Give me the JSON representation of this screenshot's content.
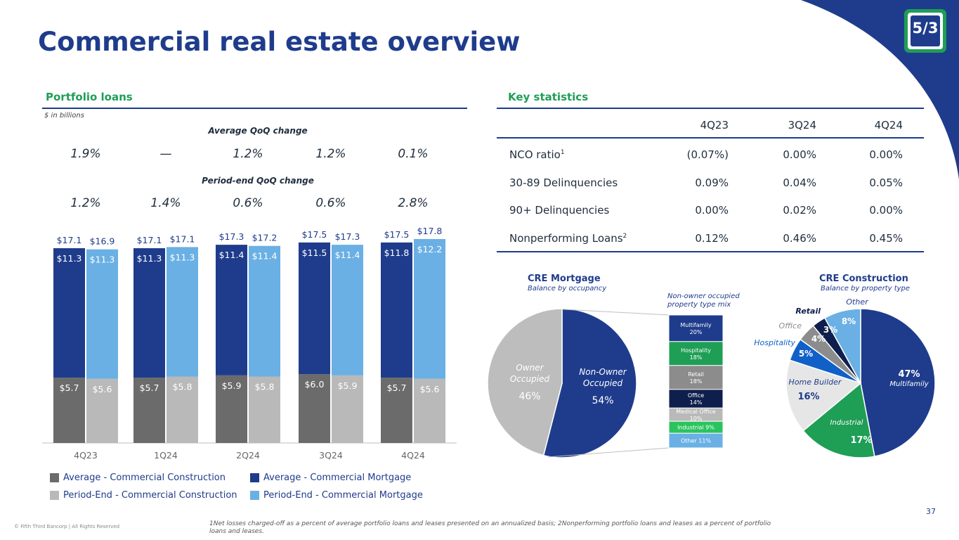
{
  "page": {
    "title": "Commercial real estate overview",
    "page_number": "37",
    "copyright": "© Fifth Third Bancorp | All Rights Reserved",
    "footnote": "1Net losses charged-off as a percent of average portfolio loans and leases presented on an annualized basis; 2Nonperforming portfolio loans and leases as a percent of portfolio loans and leases.",
    "logo_text": "5/3"
  },
  "portfolio": {
    "title": "Portfolio loans",
    "units": "$ in billions",
    "avg_change_label": "Average QoQ change",
    "avg_changes": [
      "1.9%",
      "—",
      "1.2%",
      "1.2%",
      "0.1%"
    ],
    "pe_change_label": "Period-end QoQ change",
    "pe_changes": [
      "1.2%",
      "1.4%",
      "0.6%",
      "0.6%",
      "2.8%"
    ]
  },
  "colors": {
    "avg_construction": "#6b6b6b",
    "avg_mortgage": "#1f3c8c",
    "pe_construction": "#b9b9b9",
    "pe_mortgage": "#6ab0e4",
    "green": "#1f9e55",
    "navy": "#1f3c8c"
  },
  "chart_data": [
    {
      "type": "bar",
      "stacked": true,
      "categories": [
        "4Q23",
        "1Q24",
        "2Q24",
        "3Q24",
        "4Q24"
      ],
      "series": [
        {
          "name": "Average - Commercial Construction",
          "values": [
            5.7,
            5.7,
            5.9,
            6.0,
            5.7
          ],
          "labels": [
            "$5.7",
            "$5.7",
            "$5.9",
            "$6.0",
            "$5.7"
          ]
        },
        {
          "name": "Average - Commercial Mortgage",
          "values": [
            11.3,
            11.3,
            11.4,
            11.5,
            11.8
          ],
          "labels": [
            "$11.3",
            "$11.3",
            "$11.4",
            "$11.5",
            "$11.8"
          ]
        },
        {
          "name": "Period-End - Commercial Construction",
          "values": [
            5.6,
            5.8,
            5.8,
            5.9,
            5.6
          ],
          "labels": [
            "$5.6",
            "$5.8",
            "$5.8",
            "$5.9",
            "$5.6"
          ]
        },
        {
          "name": "Period-End - Commercial Mortgage",
          "values": [
            11.3,
            11.3,
            11.4,
            11.4,
            12.2
          ],
          "labels": [
            "$11.3",
            "$11.3",
            "$11.4",
            "$11.4",
            "$12.2"
          ]
        }
      ],
      "avg_totals": [
        "$17.1",
        "$17.1",
        "$17.3",
        "$17.5",
        "$17.5"
      ],
      "pe_totals": [
        "$16.9",
        "$17.1",
        "$17.2",
        "$17.3",
        "$17.8"
      ],
      "legend": "bottom"
    },
    {
      "type": "pie",
      "title": "CRE Mortgage",
      "subtitle": "Balance by occupancy",
      "slices": [
        {
          "label": "Non-Owner Occupied",
          "value": 54,
          "pct": "54%"
        },
        {
          "label": "Owner Occupied",
          "value": 46,
          "pct": "46%"
        }
      ],
      "breakout_title": "Non-owner occupied property type mix",
      "breakout": [
        {
          "label": "Multifamily",
          "value": 20,
          "text": "20%"
        },
        {
          "label": "Hospitality",
          "value": 18,
          "text": "18%"
        },
        {
          "label": "Retail",
          "value": 18,
          "text": "18%"
        },
        {
          "label": "Office",
          "value": 14,
          "text": "14%"
        },
        {
          "label": "Medical Office",
          "value": 10,
          "text": "10%"
        },
        {
          "label": "Industrial 9%",
          "value": 9,
          "text": ""
        },
        {
          "label": "Other 11%",
          "value": 11,
          "text": ""
        }
      ]
    },
    {
      "type": "pie",
      "title": "CRE Construction",
      "subtitle": "Balance by property type",
      "slices": [
        {
          "label": "Multifamily",
          "value": 47,
          "pct": "47%"
        },
        {
          "label": "Industrial",
          "value": 17,
          "pct": "17%"
        },
        {
          "label": "Home Builder",
          "value": 16,
          "pct": "16%"
        },
        {
          "label": "Hospitality",
          "value": 5,
          "pct": "5%"
        },
        {
          "label": "Office",
          "value": 4,
          "pct": "4%"
        },
        {
          "label": "Retail",
          "value": 3,
          "pct": "3%"
        },
        {
          "label": "Other",
          "value": 8,
          "pct": "8%"
        }
      ]
    }
  ],
  "key_stats": {
    "title": "Key statistics",
    "headers": [
      "4Q23",
      "3Q24",
      "4Q24"
    ],
    "rows": [
      {
        "label": "NCO ratio",
        "sup": "1",
        "values": [
          "(0.07%)",
          "0.00%",
          "0.00%"
        ]
      },
      {
        "label": "30-89 Delinquencies",
        "sup": "",
        "values": [
          "0.09%",
          "0.04%",
          "0.05%"
        ]
      },
      {
        "label": "90+ Delinquencies",
        "sup": "",
        "values": [
          "0.00%",
          "0.02%",
          "0.00%"
        ]
      },
      {
        "label": "Nonperforming Loans",
        "sup": "2",
        "values": [
          "0.12%",
          "0.46%",
          "0.45%"
        ]
      }
    ]
  }
}
